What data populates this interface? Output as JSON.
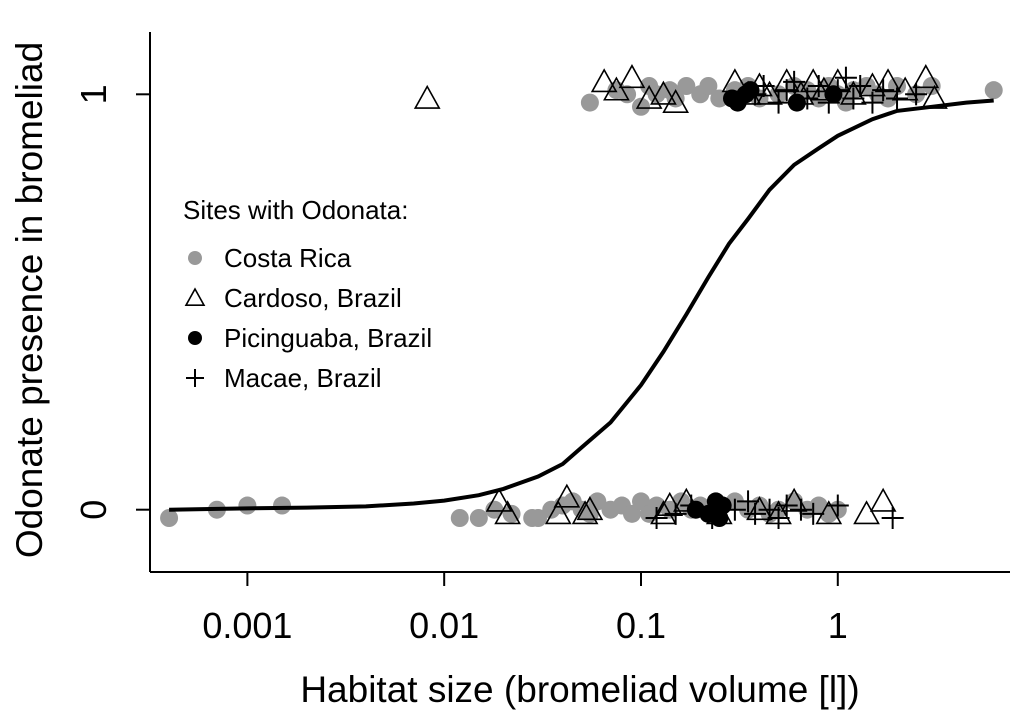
{
  "chart_data": {
    "type": "scatter",
    "title": "",
    "xlabel": "Habitat size (bromeliad volume [l])",
    "ylabel": "Odonate presence in bromeliad",
    "x_scale": "log",
    "xlim": [
      0.00032,
      7.5
    ],
    "ylim": [
      -0.15,
      1.15
    ],
    "x_ticks": [
      {
        "value": 0.001,
        "label": "0.001"
      },
      {
        "value": 0.01,
        "label": "0.01"
      },
      {
        "value": 0.1,
        "label": "0.1"
      },
      {
        "value": 1,
        "label": "1"
      }
    ],
    "y_ticks": [
      {
        "value": 0,
        "label": "0"
      },
      {
        "value": 1,
        "label": "1"
      }
    ],
    "grid": false,
    "legend": {
      "title": "Sites with Odonata:",
      "position": "left-middle",
      "entries": [
        {
          "label": "Costa Rica",
          "marker": "filled-circle",
          "color": "#999999"
        },
        {
          "label": "Cardoso, Brazil",
          "marker": "open-triangle",
          "color": "#000000"
        },
        {
          "label": "Picinguaba, Brazil",
          "marker": "filled-circle",
          "color": "#000000"
        },
        {
          "label": "Macae, Brazil",
          "marker": "plus",
          "color": "#000000"
        }
      ]
    },
    "series": [
      {
        "name": "Costa Rica",
        "marker": "filled-circle",
        "color": "#999999",
        "points": [
          [
            0.0004,
            -0.02
          ],
          [
            0.0007,
            0.0
          ],
          [
            0.001,
            0.01
          ],
          [
            0.0015,
            0.01
          ],
          [
            0.012,
            -0.02
          ],
          [
            0.015,
            -0.02
          ],
          [
            0.018,
            0.0
          ],
          [
            0.022,
            -0.01
          ],
          [
            0.028,
            -0.02
          ],
          [
            0.03,
            -0.02
          ],
          [
            0.035,
            0.0
          ],
          [
            0.04,
            0.01
          ],
          [
            0.045,
            0.02
          ],
          [
            0.05,
            0.0
          ],
          [
            0.055,
            -0.01
          ],
          [
            0.06,
            0.02
          ],
          [
            0.07,
            0.0
          ],
          [
            0.08,
            0.01
          ],
          [
            0.09,
            -0.01
          ],
          [
            0.1,
            0.02
          ],
          [
            0.11,
            -0.01
          ],
          [
            0.12,
            0.01
          ],
          [
            0.14,
            0.0
          ],
          [
            0.16,
            0.02
          ],
          [
            0.18,
            0.0
          ],
          [
            0.2,
            0.01
          ],
          [
            0.22,
            -0.01
          ],
          [
            0.3,
            0.02
          ],
          [
            0.35,
            0.0
          ],
          [
            0.4,
            0.01
          ],
          [
            0.45,
            -0.01
          ],
          [
            0.5,
            0.0
          ],
          [
            0.6,
            0.02
          ],
          [
            0.7,
            0.0
          ],
          [
            0.8,
            0.01
          ],
          [
            0.9,
            -0.01
          ],
          [
            1.0,
            0.0
          ],
          [
            0.055,
            0.98
          ],
          [
            0.075,
            1.01
          ],
          [
            0.085,
            1.0
          ],
          [
            0.1,
            0.97
          ],
          [
            0.11,
            1.02
          ],
          [
            0.12,
            1.0
          ],
          [
            0.14,
            1.01
          ],
          [
            0.15,
            0.99
          ],
          [
            0.17,
            1.02
          ],
          [
            0.2,
            1.0
          ],
          [
            0.22,
            1.02
          ],
          [
            0.25,
            0.99
          ],
          [
            0.3,
            1.01
          ],
          [
            0.35,
            1.02
          ],
          [
            0.4,
            0.99
          ],
          [
            0.5,
            1.0
          ],
          [
            0.6,
            1.02
          ],
          [
            0.7,
            1.01
          ],
          [
            0.8,
            0.99
          ],
          [
            0.9,
            1.02
          ],
          [
            1.0,
            1.0
          ],
          [
            1.1,
            0.98
          ],
          [
            1.2,
            1.01
          ],
          [
            1.4,
            1.02
          ],
          [
            1.6,
            1.0
          ],
          [
            1.8,
            0.99
          ],
          [
            2.0,
            1.02
          ],
          [
            2.5,
            1.0
          ],
          [
            3.0,
            1.02
          ],
          [
            6.2,
            1.01
          ]
        ]
      },
      {
        "name": "Cardoso, Brazil",
        "marker": "open-triangle",
        "color": "#000000",
        "points": [
          [
            0.0082,
            0.99
          ],
          [
            0.019,
            0.02
          ],
          [
            0.021,
            -0.01
          ],
          [
            0.038,
            -0.01
          ],
          [
            0.042,
            0.03
          ],
          [
            0.052,
            -0.01
          ],
          [
            0.055,
            0.0
          ],
          [
            0.13,
            -0.01
          ],
          [
            0.14,
            0.01
          ],
          [
            0.17,
            0.02
          ],
          [
            0.25,
            -0.01
          ],
          [
            0.4,
            0.0
          ],
          [
            0.5,
            -0.01
          ],
          [
            0.6,
            0.02
          ],
          [
            0.9,
            -0.01
          ],
          [
            1.4,
            -0.01
          ],
          [
            1.7,
            0.02
          ],
          [
            0.065,
            1.03
          ],
          [
            0.075,
            1.01
          ],
          [
            0.09,
            1.04
          ],
          [
            0.11,
            0.99
          ],
          [
            0.13,
            1.0
          ],
          [
            0.15,
            0.98
          ],
          [
            0.3,
            1.03
          ],
          [
            0.35,
            1.0
          ],
          [
            0.4,
            1.02
          ],
          [
            0.45,
            1.0
          ],
          [
            0.55,
            1.03
          ],
          [
            0.65,
            1.0
          ],
          [
            0.75,
            1.03
          ],
          [
            0.85,
            1.01
          ],
          [
            1.0,
            1.03
          ],
          [
            1.2,
            1.0
          ],
          [
            1.5,
            1.02
          ],
          [
            1.8,
            1.03
          ],
          [
            2.2,
            1.01
          ],
          [
            2.8,
            1.04
          ],
          [
            3.1,
            0.99
          ]
        ]
      },
      {
        "name": "Picinguaba, Brazil",
        "marker": "filled-circle",
        "color": "#000000",
        "points": [
          [
            0.19,
            0.0
          ],
          [
            0.22,
            -0.01
          ],
          [
            0.24,
            0.02
          ],
          [
            0.25,
            -0.02
          ],
          [
            0.26,
            0.01
          ],
          [
            0.29,
            0.99
          ],
          [
            0.31,
            0.98
          ],
          [
            0.34,
            1.0
          ],
          [
            0.36,
            1.01
          ],
          [
            0.62,
            0.98
          ],
          [
            0.95,
            1.0
          ]
        ]
      },
      {
        "name": "Macae, Brazil",
        "marker": "plus",
        "color": "#000000",
        "points": [
          [
            0.12,
            -0.02
          ],
          [
            0.15,
            -0.01
          ],
          [
            0.18,
            0.01
          ],
          [
            0.23,
            -0.02
          ],
          [
            0.3,
            0.0
          ],
          [
            0.35,
            0.02
          ],
          [
            0.38,
            -0.01
          ],
          [
            0.45,
            0.0
          ],
          [
            0.5,
            -0.02
          ],
          [
            0.55,
            0.01
          ],
          [
            0.65,
            0.0
          ],
          [
            0.75,
            -0.01
          ],
          [
            1.0,
            0.01
          ],
          [
            1.9,
            -0.02
          ],
          [
            0.38,
            1.0
          ],
          [
            0.42,
            1.02
          ],
          [
            0.5,
            0.98
          ],
          [
            0.55,
            1.01
          ],
          [
            0.6,
            1.03
          ],
          [
            0.7,
            0.99
          ],
          [
            0.8,
            1.02
          ],
          [
            0.9,
            0.98
          ],
          [
            1.0,
            1.01
          ],
          [
            1.1,
            1.04
          ],
          [
            1.2,
            0.99
          ],
          [
            1.3,
            1.02
          ],
          [
            1.5,
            0.98
          ],
          [
            1.7,
            1.01
          ],
          [
            2.0,
            0.99
          ],
          [
            2.5,
            1.0
          ]
        ]
      }
    ],
    "fitted_curve": {
      "type": "logistic",
      "line_color": "#000000",
      "points": [
        [
          0.0004,
          0.0
        ],
        [
          0.0007,
          0.002
        ],
        [
          0.001,
          0.003
        ],
        [
          0.002,
          0.005
        ],
        [
          0.004,
          0.008
        ],
        [
          0.007,
          0.015
        ],
        [
          0.01,
          0.022
        ],
        [
          0.015,
          0.035
        ],
        [
          0.02,
          0.05
        ],
        [
          0.03,
          0.08
        ],
        [
          0.04,
          0.11
        ],
        [
          0.05,
          0.15
        ],
        [
          0.07,
          0.21
        ],
        [
          0.1,
          0.3
        ],
        [
          0.13,
          0.38
        ],
        [
          0.17,
          0.47
        ],
        [
          0.22,
          0.56
        ],
        [
          0.28,
          0.64
        ],
        [
          0.35,
          0.7
        ],
        [
          0.45,
          0.77
        ],
        [
          0.6,
          0.83
        ],
        [
          0.8,
          0.87
        ],
        [
          1.0,
          0.9
        ],
        [
          1.5,
          0.94
        ],
        [
          2.0,
          0.96
        ],
        [
          3.0,
          0.97
        ],
        [
          4.5,
          0.98
        ],
        [
          6.2,
          0.985
        ]
      ]
    }
  }
}
